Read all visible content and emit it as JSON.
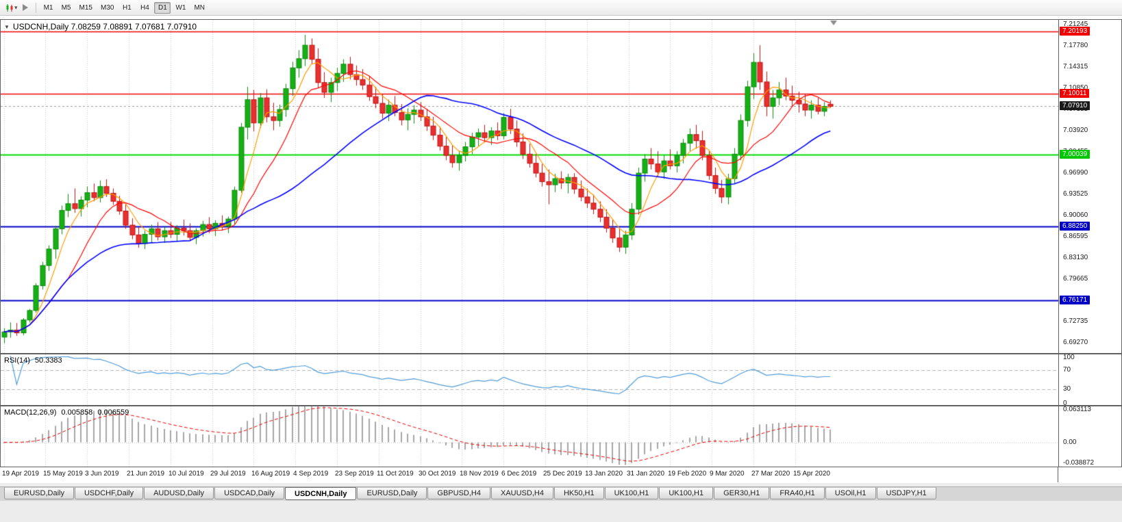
{
  "toolbar": {
    "timeframes": [
      {
        "label": "M1",
        "active": false
      },
      {
        "label": "M5",
        "active": false
      },
      {
        "label": "M15",
        "active": false
      },
      {
        "label": "M30",
        "active": false
      },
      {
        "label": "H1",
        "active": false
      },
      {
        "label": "H4",
        "active": false
      },
      {
        "label": "D1",
        "active": true
      },
      {
        "label": "W1",
        "active": false
      },
      {
        "label": "MN",
        "active": false
      }
    ]
  },
  "chart": {
    "collapse_icon": "▼",
    "title": "USDCNH,Daily 7.08259 7.08891 7.07681 7.07910"
  },
  "price_axis": {
    "ticks": [
      "7.21245",
      "7.17780",
      "7.14315",
      "7.10850",
      "7.07385",
      "7.03920",
      "7.00455",
      "6.96990",
      "6.93525",
      "6.90060",
      "6.86595",
      "6.83130",
      "6.79665",
      "6.76200",
      "6.72735",
      "6.69270"
    ],
    "badges": [
      {
        "text": "7.20193",
        "color": "#f00000",
        "name": "resistance-upper"
      },
      {
        "text": "7.10011",
        "color": "#f00000",
        "name": "resistance"
      },
      {
        "text": "7.07910",
        "color": "#1a1a1a",
        "name": "current-price"
      },
      {
        "text": "7.00039",
        "color": "#00c800",
        "name": "pivot-level"
      },
      {
        "text": "6.88250",
        "color": "#0000c8",
        "name": "support"
      },
      {
        "text": "6.76171",
        "color": "#0000c8",
        "name": "support-lower"
      }
    ]
  },
  "rsi": {
    "label": "RSI(14)",
    "value": "50.3383",
    "axis_labels": [
      "100",
      "70",
      "30",
      "0"
    ],
    "levels": [
      70,
      30
    ],
    "line_color": "#4f9bd8"
  },
  "macd": {
    "label": "MACD(12,26,9)",
    "value_main": "0.005858",
    "value_signal": "0.006559",
    "axis_labels": [
      "0.063113",
      "0.00",
      "-0.038872"
    ],
    "histogram_color": "#a6a6a6",
    "signal_color": "#e00000"
  },
  "time_axis": {
    "labels": [
      "19 Apr 2019",
      "15 May 2019",
      "3 Jun 2019",
      "21 Jun 2019",
      "10 Jul 2019",
      "29 Jul 2019",
      "16 Aug 2019",
      "4 Sep 2019",
      "23 Sep 2019",
      "11 Oct 2019",
      "30 Oct 2019",
      "18 Nov 2019",
      "6 Dec 2019",
      "25 Dec 2019",
      "13 Jan 2020",
      "31 Jan 2020",
      "19 Feb 2020",
      "9 Mar 2020",
      "27 Mar 2020",
      "15 Apr 2020"
    ]
  },
  "tabs": [
    {
      "label": "EURUSD,Daily",
      "active": false
    },
    {
      "label": "USDCHF,Daily",
      "active": false
    },
    {
      "label": "AUDUSD,Daily",
      "active": false
    },
    {
      "label": "USDCAD,Daily",
      "active": false
    },
    {
      "label": "USDCNH,Daily",
      "active": true
    },
    {
      "label": "EURUSD,Daily",
      "active": false
    },
    {
      "label": "GBPUSD,H4",
      "active": false
    },
    {
      "label": "XAUUSD,H4",
      "active": false
    },
    {
      "label": "HK50,H1",
      "active": false
    },
    {
      "label": "UK100,H1",
      "active": false
    },
    {
      "label": "UK100,H1",
      "active": false
    },
    {
      "label": "GER30,H1",
      "active": false
    },
    {
      "label": "FRA40,H1",
      "active": false
    },
    {
      "label": "USOil,H1",
      "active": false
    },
    {
      "label": "USDJPY,H1",
      "active": false
    }
  ],
  "chart_data": {
    "type": "candlestick",
    "symbol": "USDCNH",
    "timeframe": "Daily",
    "ylim": [
      6.676,
      7.2205
    ],
    "current_price": 7.0791,
    "hlines": [
      {
        "price": 7.20193,
        "color": "#f00000",
        "width": 1.5
      },
      {
        "price": 7.10011,
        "color": "#f00000",
        "width": 1.5
      },
      {
        "price": 7.00039,
        "color": "#00dd00",
        "width": 2
      },
      {
        "price": 6.8825,
        "color": "#0000c8",
        "width": 2
      },
      {
        "price": 6.76171,
        "color": "#0000c8",
        "width": 2
      }
    ],
    "moving_averages": [
      {
        "period": 5,
        "color": "#ff9c00",
        "width": 1.2
      },
      {
        "period": 11,
        "color": "#ff0000",
        "width": 1.2
      },
      {
        "period": 30,
        "color": "#0000ff",
        "width": 1.6
      }
    ],
    "rsi_period": 14,
    "macd_params": [
      12,
      26,
      9
    ],
    "candles": [
      [
        6.702,
        6.7165,
        6.692,
        6.7105
      ],
      [
        6.7105,
        6.726,
        6.701,
        6.7135
      ],
      [
        6.7135,
        6.725,
        6.704,
        6.709
      ],
      [
        6.709,
        6.733,
        6.705,
        6.73
      ],
      [
        6.73,
        6.748,
        6.726,
        6.7455
      ],
      [
        6.7455,
        6.79,
        6.742,
        6.786
      ],
      [
        6.786,
        6.825,
        6.78,
        6.819
      ],
      [
        6.819,
        6.852,
        6.81,
        6.846
      ],
      [
        6.846,
        6.884,
        6.83,
        6.879
      ],
      [
        6.879,
        6.917,
        6.87,
        6.909
      ],
      [
        6.909,
        6.936,
        6.898,
        6.92
      ],
      [
        6.92,
        6.945,
        6.905,
        6.912
      ],
      [
        6.912,
        6.932,
        6.899,
        6.926
      ],
      [
        6.926,
        6.948,
        6.914,
        6.938
      ],
      [
        6.938,
        6.953,
        6.924,
        6.93
      ],
      [
        6.93,
        6.958,
        6.922,
        6.948
      ],
      [
        6.948,
        6.96,
        6.931,
        6.937
      ],
      [
        6.937,
        6.945,
        6.918,
        6.924
      ],
      [
        6.924,
        6.933,
        6.902,
        6.908
      ],
      [
        6.908,
        6.919,
        6.879,
        6.885
      ],
      [
        6.885,
        6.896,
        6.862,
        6.869
      ],
      [
        6.869,
        6.882,
        6.848,
        6.855
      ],
      [
        6.855,
        6.876,
        6.846,
        6.87
      ],
      [
        6.87,
        6.886,
        6.856,
        6.879
      ],
      [
        6.879,
        6.89,
        6.86,
        6.866
      ],
      [
        6.866,
        6.882,
        6.856,
        6.876
      ],
      [
        6.876,
        6.89,
        6.864,
        6.87
      ],
      [
        6.87,
        6.885,
        6.858,
        6.88
      ],
      [
        6.88,
        6.894,
        6.868,
        6.876
      ],
      [
        6.876,
        6.888,
        6.86,
        6.865
      ],
      [
        6.865,
        6.88,
        6.854,
        6.876
      ],
      [
        6.876,
        6.892,
        6.866,
        6.886
      ],
      [
        6.886,
        6.898,
        6.872,
        6.879
      ],
      [
        6.879,
        6.893,
        6.867,
        6.888
      ],
      [
        6.888,
        6.901,
        6.876,
        6.883
      ],
      [
        6.883,
        6.899,
        6.872,
        6.895
      ],
      [
        6.895,
        6.948,
        6.887,
        6.942
      ],
      [
        6.942,
        7.052,
        6.938,
        7.045
      ],
      [
        7.045,
        7.111,
        7.025,
        7.09
      ],
      [
        7.09,
        7.106,
        7.038,
        7.052
      ],
      [
        7.052,
        7.101,
        7.044,
        7.093
      ],
      [
        7.093,
        7.107,
        7.053,
        7.062
      ],
      [
        7.062,
        7.085,
        7.04,
        7.056
      ],
      [
        7.056,
        7.082,
        7.046,
        7.074
      ],
      [
        7.074,
        7.116,
        7.062,
        7.108
      ],
      [
        7.108,
        7.152,
        7.096,
        7.142
      ],
      [
        7.142,
        7.171,
        7.126,
        7.157
      ],
      [
        7.157,
        7.196,
        7.145,
        7.179
      ],
      [
        7.179,
        7.19,
        7.148,
        7.156
      ],
      [
        7.156,
        7.174,
        7.109,
        7.118
      ],
      [
        7.118,
        7.135,
        7.093,
        7.102
      ],
      [
        7.102,
        7.126,
        7.086,
        7.118
      ],
      [
        7.118,
        7.142,
        7.104,
        7.133
      ],
      [
        7.133,
        7.156,
        7.119,
        7.148
      ],
      [
        7.148,
        7.16,
        7.123,
        7.131
      ],
      [
        7.131,
        7.146,
        7.113,
        7.123
      ],
      [
        7.123,
        7.14,
        7.106,
        7.114
      ],
      [
        7.114,
        7.129,
        7.088,
        7.095
      ],
      [
        7.095,
        7.111,
        7.076,
        7.084
      ],
      [
        7.084,
        7.099,
        7.059,
        7.068
      ],
      [
        7.068,
        7.09,
        7.055,
        7.081
      ],
      [
        7.081,
        7.096,
        7.063,
        7.069
      ],
      [
        7.069,
        7.083,
        7.048,
        7.057
      ],
      [
        7.057,
        7.076,
        7.04,
        7.066
      ],
      [
        7.066,
        7.081,
        7.051,
        7.073
      ],
      [
        7.073,
        7.086,
        7.055,
        7.062
      ],
      [
        7.062,
        7.075,
        7.039,
        7.047
      ],
      [
        7.047,
        7.062,
        7.024,
        7.032
      ],
      [
        7.032,
        7.046,
        7.007,
        7.014
      ],
      [
        7.014,
        7.029,
        6.991,
        6.999
      ],
      [
        6.999,
        7.016,
        6.979,
        6.987
      ],
      [
        6.987,
        7.006,
        6.974,
        6.999
      ],
      [
        6.999,
        7.021,
        6.989,
        7.013
      ],
      [
        7.013,
        7.036,
        7.001,
        7.029
      ],
      [
        7.029,
        7.043,
        7.014,
        7.036
      ],
      [
        7.036,
        7.049,
        7.02,
        7.028
      ],
      [
        7.028,
        7.045,
        7.016,
        7.039
      ],
      [
        7.039,
        7.053,
        7.024,
        7.031
      ],
      [
        7.031,
        7.068,
        7.025,
        7.061
      ],
      [
        7.061,
        7.075,
        7.034,
        7.042
      ],
      [
        7.042,
        7.056,
        7.013,
        7.021
      ],
      [
        7.021,
        7.035,
        6.993,
        7.001
      ],
      [
        7.001,
        7.018,
        6.979,
        6.986
      ],
      [
        6.986,
        7.001,
        6.963,
        6.97
      ],
      [
        6.97,
        6.985,
        6.948,
        6.956
      ],
      [
        6.956,
        6.976,
        6.919,
        6.951
      ],
      [
        6.951,
        6.969,
        6.939,
        6.961
      ],
      [
        6.961,
        6.973,
        6.944,
        6.954
      ],
      [
        6.954,
        6.969,
        6.937,
        6.963
      ],
      [
        6.963,
        6.97,
        6.936,
        6.944
      ],
      [
        6.944,
        6.958,
        6.924,
        6.931
      ],
      [
        6.931,
        6.945,
        6.913,
        6.921
      ],
      [
        6.921,
        6.935,
        6.903,
        6.911
      ],
      [
        6.911,
        6.924,
        6.89,
        6.898
      ],
      [
        6.898,
        6.911,
        6.873,
        6.88
      ],
      [
        6.88,
        6.894,
        6.856,
        6.864
      ],
      [
        6.864,
        6.879,
        6.841,
        6.849
      ],
      [
        6.849,
        6.876,
        6.838,
        6.869
      ],
      [
        6.869,
        6.921,
        6.861,
        6.911
      ],
      [
        6.911,
        6.979,
        6.902,
        6.97
      ],
      [
        6.97,
        7.001,
        6.956,
        6.993
      ],
      [
        6.993,
        7.011,
        6.976,
        6.985
      ],
      [
        6.985,
        7.006,
        6.963,
        6.972
      ],
      [
        6.972,
        6.999,
        6.961,
        6.99
      ],
      [
        6.99,
        7.009,
        6.976,
        6.982
      ],
      [
        6.982,
        7.006,
        6.971,
        6.999
      ],
      [
        6.999,
        7.026,
        6.986,
        7.019
      ],
      [
        7.019,
        7.043,
        7.006,
        7.033
      ],
      [
        7.033,
        7.049,
        7.01,
        7.023
      ],
      [
        7.023,
        7.039,
        6.991,
        6.999
      ],
      [
        6.999,
        7.006,
        6.959,
        6.966
      ],
      [
        6.966,
        6.979,
        6.936,
        6.945
      ],
      [
        6.945,
        6.959,
        6.921,
        6.931
      ],
      [
        6.931,
        6.969,
        6.919,
        6.961
      ],
      [
        6.961,
        7.011,
        6.952,
        7.001
      ],
      [
        7.001,
        7.066,
        6.991,
        7.056
      ],
      [
        7.056,
        7.121,
        7.046,
        7.111
      ],
      [
        7.111,
        7.166,
        7.091,
        7.151
      ],
      [
        7.151,
        7.179,
        7.106,
        7.119
      ],
      [
        7.119,
        7.136,
        7.063,
        7.079
      ],
      [
        7.079,
        7.106,
        7.059,
        7.093
      ],
      [
        7.093,
        7.119,
        7.081,
        7.106
      ],
      [
        7.106,
        7.126,
        7.089,
        7.096
      ],
      [
        7.096,
        7.113,
        7.079,
        7.089
      ],
      [
        7.089,
        7.103,
        7.069,
        7.083
      ],
      [
        7.083,
        7.099,
        7.063,
        7.073
      ],
      [
        7.073,
        7.089,
        7.059,
        7.081
      ],
      [
        7.081,
        7.093,
        7.066,
        7.071
      ],
      [
        7.071,
        7.086,
        7.063,
        7.079
      ],
      [
        7.08259,
        7.08891,
        7.07681,
        7.0791
      ]
    ]
  }
}
